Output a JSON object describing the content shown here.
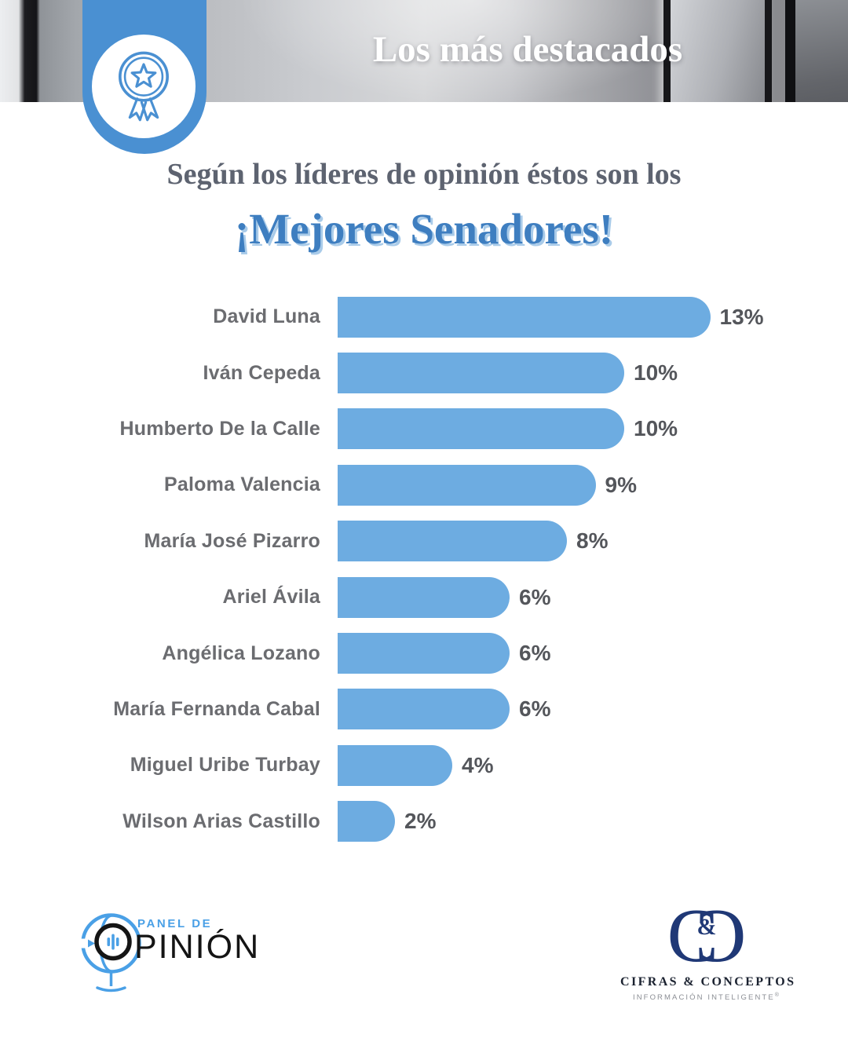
{
  "banner": {
    "title": "Los más destacados"
  },
  "intro": {
    "kicker": "Según los líderes de opinión éstos son los",
    "headline": "¡Mejores Senadores!"
  },
  "chart_data": {
    "type": "bar",
    "orientation": "horizontal",
    "title": "¡Mejores Senadores!",
    "categories": [
      "David Luna",
      "Iván Cepeda",
      "Humberto De la Calle",
      "Paloma Valencia",
      "María José Pizarro",
      "Ariel Ávila",
      "Angélica Lozano",
      "María Fernanda Cabal",
      "Miguel Uribe Turbay",
      "Wilson Arias Castillo"
    ],
    "values": [
      13,
      10,
      10,
      9,
      8,
      6,
      6,
      6,
      4,
      2
    ],
    "value_suffix": "%",
    "value_labels": "end-of-bar",
    "xlim": [
      0,
      13
    ],
    "grid": false,
    "legend": false,
    "bar_color": "#6DACE1"
  },
  "footer": {
    "panel_logo": {
      "line1": "PANEL DE",
      "word": "OPINIÓN"
    },
    "cifras_logo": {
      "name": "CIFRAS & CONCEPTOS",
      "ampersand": "&",
      "monogram_letter": "C",
      "tagline": "INFORMACIÓN INTELIGENTE",
      "registered": "®"
    }
  },
  "colors": {
    "bar_blue": "#6DACE1",
    "badge_blue": "#4A90D2",
    "headline_blue": "#3E7EC0",
    "headline_shadow": "#A9CBE9",
    "kicker_gray": "#5D6370",
    "label_gray": "#6B6C70",
    "value_gray": "#54565B",
    "navy": "#1F3876",
    "panel_blue": "#4AA0E6"
  }
}
